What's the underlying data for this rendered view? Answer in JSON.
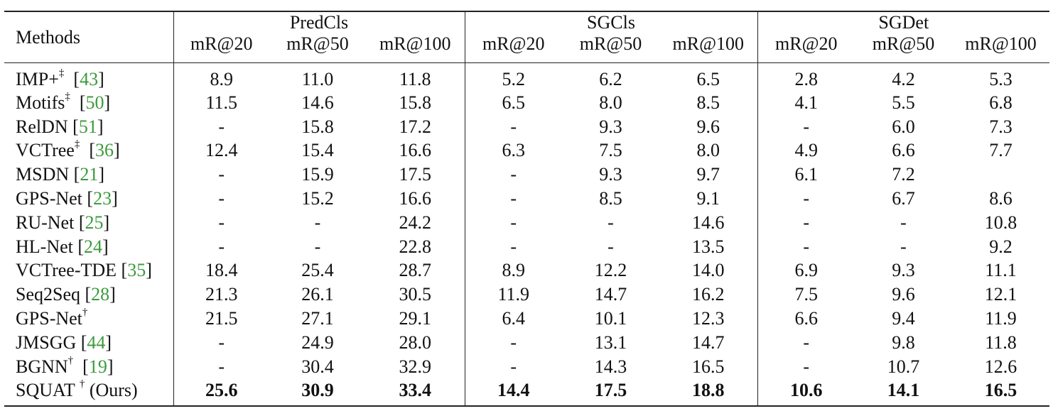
{
  "header": {
    "methods_label": "Methods",
    "groups": [
      "PredCls",
      "SGCls",
      "SGDet"
    ],
    "metrics": [
      "mR@20",
      "mR@50",
      "mR@100",
      "mR@20",
      "mR@50",
      "mR@100",
      "mR@20",
      "mR@50",
      "mR@100"
    ]
  },
  "rows": [
    {
      "name": "IMP+",
      "mark": "‡",
      "cite": "[43]",
      "suffix": "",
      "values": [
        "8.9",
        "11.0",
        "11.8",
        "5.2",
        "6.2",
        "6.5",
        "2.8",
        "4.2",
        "5.3"
      ]
    },
    {
      "name": "Motifs",
      "mark": "‡",
      "cite": "[50]",
      "suffix": "",
      "values": [
        "11.5",
        "14.6",
        "15.8",
        "6.5",
        "8.0",
        "8.5",
        "4.1",
        "5.5",
        "6.8"
      ]
    },
    {
      "name": "RelDN",
      "mark": "",
      "cite": "[51]",
      "suffix": "",
      "values": [
        "-",
        "15.8",
        "17.2",
        "-",
        "9.3",
        "9.6",
        "-",
        "6.0",
        "7.3"
      ]
    },
    {
      "name": "VCTree",
      "mark": "‡",
      "cite": "[36]",
      "suffix": "",
      "values": [
        "12.4",
        "15.4",
        "16.6",
        "6.3",
        "7.5",
        "8.0",
        "4.9",
        "6.6",
        "7.7"
      ]
    },
    {
      "name": "MSDN",
      "mark": "",
      "cite": "[21]",
      "suffix": "",
      "values": [
        "-",
        "15.9",
        "17.5",
        "-",
        "9.3",
        "9.7",
        "6.1",
        "7.2",
        ""
      ]
    },
    {
      "name": "GPS-Net",
      "mark": "",
      "cite": "[23]",
      "suffix": "",
      "values": [
        "-",
        "15.2",
        "16.6",
        "-",
        "8.5",
        "9.1",
        "-",
        "6.7",
        "8.6"
      ]
    },
    {
      "name": "RU-Net",
      "mark": "",
      "cite": "[25]",
      "suffix": "",
      "values": [
        "-",
        "-",
        "24.2",
        "-",
        "-",
        "14.6",
        "-",
        "-",
        "10.8"
      ]
    },
    {
      "name": "HL-Net",
      "mark": "",
      "cite": "[24]",
      "suffix": "",
      "values": [
        "-",
        "-",
        "22.8",
        "-",
        "-",
        "13.5",
        "-",
        "-",
        "9.2"
      ]
    },
    {
      "name": "VCTree-TDE",
      "mark": "",
      "cite": "[35]",
      "suffix": "",
      "values": [
        "18.4",
        "25.4",
        "28.7",
        "8.9",
        "12.2",
        "14.0",
        "6.9",
        "9.3",
        "11.1"
      ]
    },
    {
      "name": "Seq2Seq",
      "mark": "",
      "cite": "[28]",
      "suffix": "",
      "values": [
        "21.3",
        "26.1",
        "30.5",
        "11.9",
        "14.7",
        "16.2",
        "7.5",
        "9.6",
        "12.1"
      ]
    },
    {
      "name": "GPS-Net",
      "mark": "†",
      "cite": "",
      "suffix": "",
      "values": [
        "21.5",
        "27.1",
        "29.1",
        "6.4",
        "10.1",
        "12.3",
        "6.6",
        "9.4",
        "11.9"
      ]
    },
    {
      "name": "JMSGG",
      "mark": "",
      "cite": "[44]",
      "suffix": "",
      "values": [
        "-",
        "24.9",
        "28.0",
        "-",
        "13.1",
        "14.7",
        "-",
        "9.8",
        "11.8"
      ]
    },
    {
      "name": "BGNN",
      "mark": "†",
      "cite": "[19]",
      "suffix": "",
      "values": [
        "-",
        "30.4",
        "32.9",
        "-",
        "14.3",
        "16.5",
        "-",
        "10.7",
        "12.6"
      ]
    },
    {
      "name": "SQUAT ",
      "mark": "†",
      "cite": "",
      "suffix": " (Ours)",
      "values": [
        "25.6",
        "30.9",
        "33.4",
        "14.4",
        "17.5",
        "18.8",
        "10.6",
        "14.1",
        "16.5"
      ],
      "bold": true
    }
  ]
}
